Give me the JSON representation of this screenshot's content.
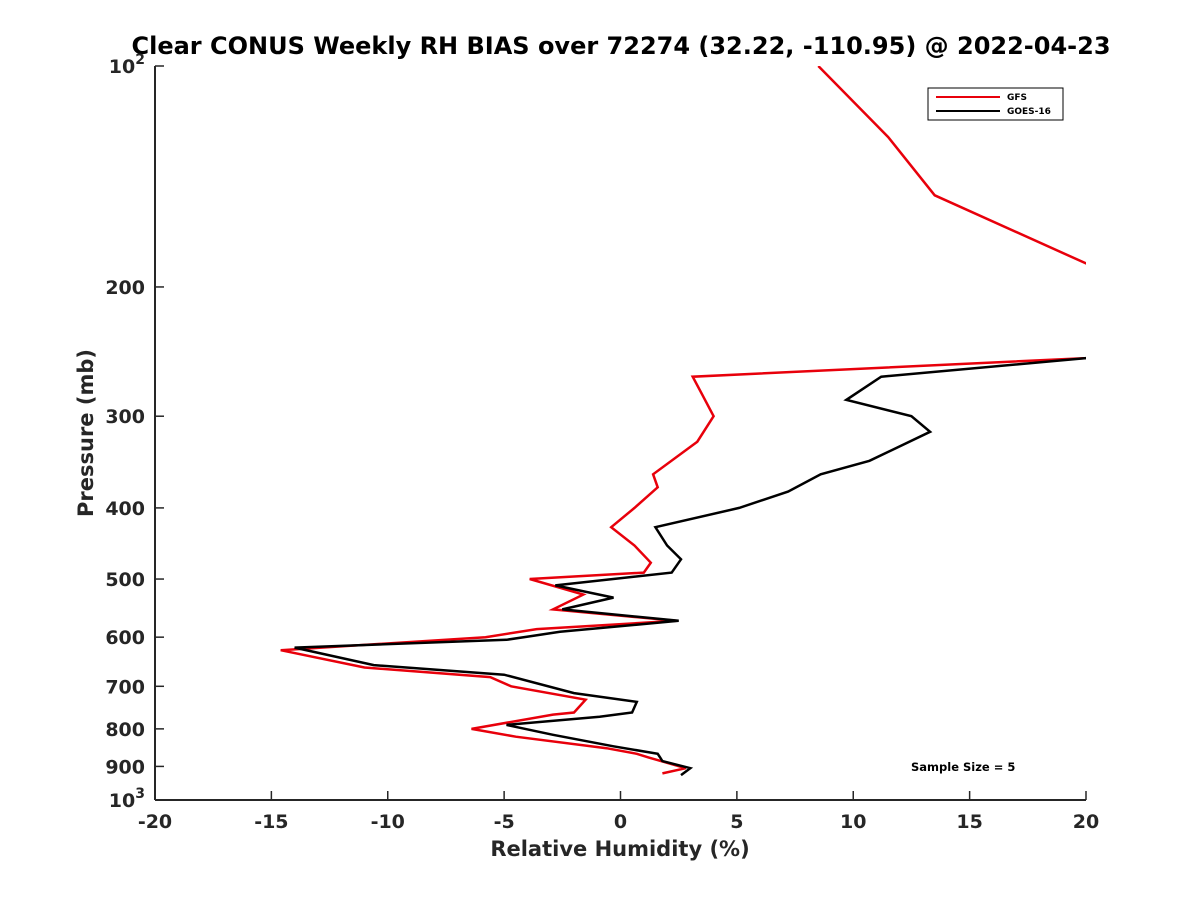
{
  "chart_data": {
    "type": "line",
    "title": "Clear CONUS Weekly RH BIAS over 72274 (32.22, -110.95) @ 2022-04-23",
    "xlabel": "Relative Humidity (%)",
    "ylabel": "Pressure (mb)",
    "xlim": [
      -20,
      20
    ],
    "ylim": [
      100,
      1000
    ],
    "y_scale": "log",
    "y_reversed": true,
    "grid": false,
    "legend_position": "top-right",
    "annotation": "Sample Size = 5",
    "x_ticks": [
      "-20",
      "-15",
      "-10",
      "-5",
      "0",
      "5",
      "10",
      "15",
      "20"
    ],
    "y_ticks": [
      {
        "value": 100,
        "base": "10",
        "exp": "2"
      },
      {
        "value": 200,
        "base": "200",
        "exp": ""
      },
      {
        "value": 300,
        "base": "300",
        "exp": ""
      },
      {
        "value": 400,
        "base": "400",
        "exp": ""
      },
      {
        "value": 500,
        "base": "500",
        "exp": ""
      },
      {
        "value": 600,
        "base": "600",
        "exp": ""
      },
      {
        "value": 700,
        "base": "700",
        "exp": ""
      },
      {
        "value": 800,
        "base": "800",
        "exp": ""
      },
      {
        "value": 900,
        "base": "900",
        "exp": ""
      },
      {
        "value": 1000,
        "base": "10",
        "exp": "3"
      }
    ],
    "series": [
      {
        "name": "GFS",
        "color": "#e8000b",
        "points": [
          [
            8.5,
            100
          ],
          [
            11.5,
            125
          ],
          [
            13.5,
            150
          ],
          [
            21,
            192
          ],
          [
            21,
            245
          ],
          [
            20,
            250
          ],
          [
            3.1,
            265
          ],
          [
            3.5,
            280
          ],
          [
            4.0,
            300
          ],
          [
            3.3,
            325
          ],
          [
            1.4,
            360
          ],
          [
            1.6,
            375
          ],
          [
            0.6,
            400
          ],
          [
            -0.4,
            425
          ],
          [
            0.6,
            450
          ],
          [
            1.3,
            475
          ],
          [
            1.0,
            490
          ],
          [
            -3.9,
            500
          ],
          [
            -1.6,
            525
          ],
          [
            -2.9,
            550
          ],
          [
            2.4,
            570
          ],
          [
            -3.6,
            585
          ],
          [
            -5.8,
            600
          ],
          [
            -14.6,
            625
          ],
          [
            -11.0,
            660
          ],
          [
            -5.6,
            680
          ],
          [
            -4.7,
            700
          ],
          [
            -1.5,
            730
          ],
          [
            -2.0,
            760
          ],
          [
            -2.9,
            765
          ],
          [
            -6.4,
            800
          ],
          [
            -4.5,
            820
          ],
          [
            -0.6,
            850
          ],
          [
            0.7,
            865
          ],
          [
            1.2,
            875
          ],
          [
            2.8,
            905
          ],
          [
            1.8,
            920
          ]
        ]
      },
      {
        "name": "GOES-16",
        "color": "#000000",
        "points": [
          [
            21,
            245
          ],
          [
            20,
            250
          ],
          [
            11.2,
            265
          ],
          [
            9.7,
            285
          ],
          [
            12.5,
            300
          ],
          [
            13.3,
            315
          ],
          [
            10.7,
            345
          ],
          [
            8.6,
            360
          ],
          [
            7.2,
            380
          ],
          [
            5.1,
            400
          ],
          [
            1.5,
            425
          ],
          [
            2.0,
            450
          ],
          [
            2.6,
            470
          ],
          [
            2.2,
            490
          ],
          [
            -2.8,
            510
          ],
          [
            -0.3,
            530
          ],
          [
            -2.5,
            550
          ],
          [
            2.5,
            570
          ],
          [
            -2.6,
            590
          ],
          [
            -4.9,
            605
          ],
          [
            -14.0,
            620
          ],
          [
            -10.6,
            655
          ],
          [
            -5.0,
            675
          ],
          [
            -2.0,
            715
          ],
          [
            0.7,
            735
          ],
          [
            0.5,
            760
          ],
          [
            -0.9,
            770
          ],
          [
            -4.9,
            790
          ],
          [
            -2.9,
            815
          ],
          [
            -0.3,
            845
          ],
          [
            1.6,
            865
          ],
          [
            1.7,
            875
          ],
          [
            1.8,
            885
          ],
          [
            3.0,
            905
          ],
          [
            2.6,
            925
          ]
        ]
      }
    ]
  }
}
